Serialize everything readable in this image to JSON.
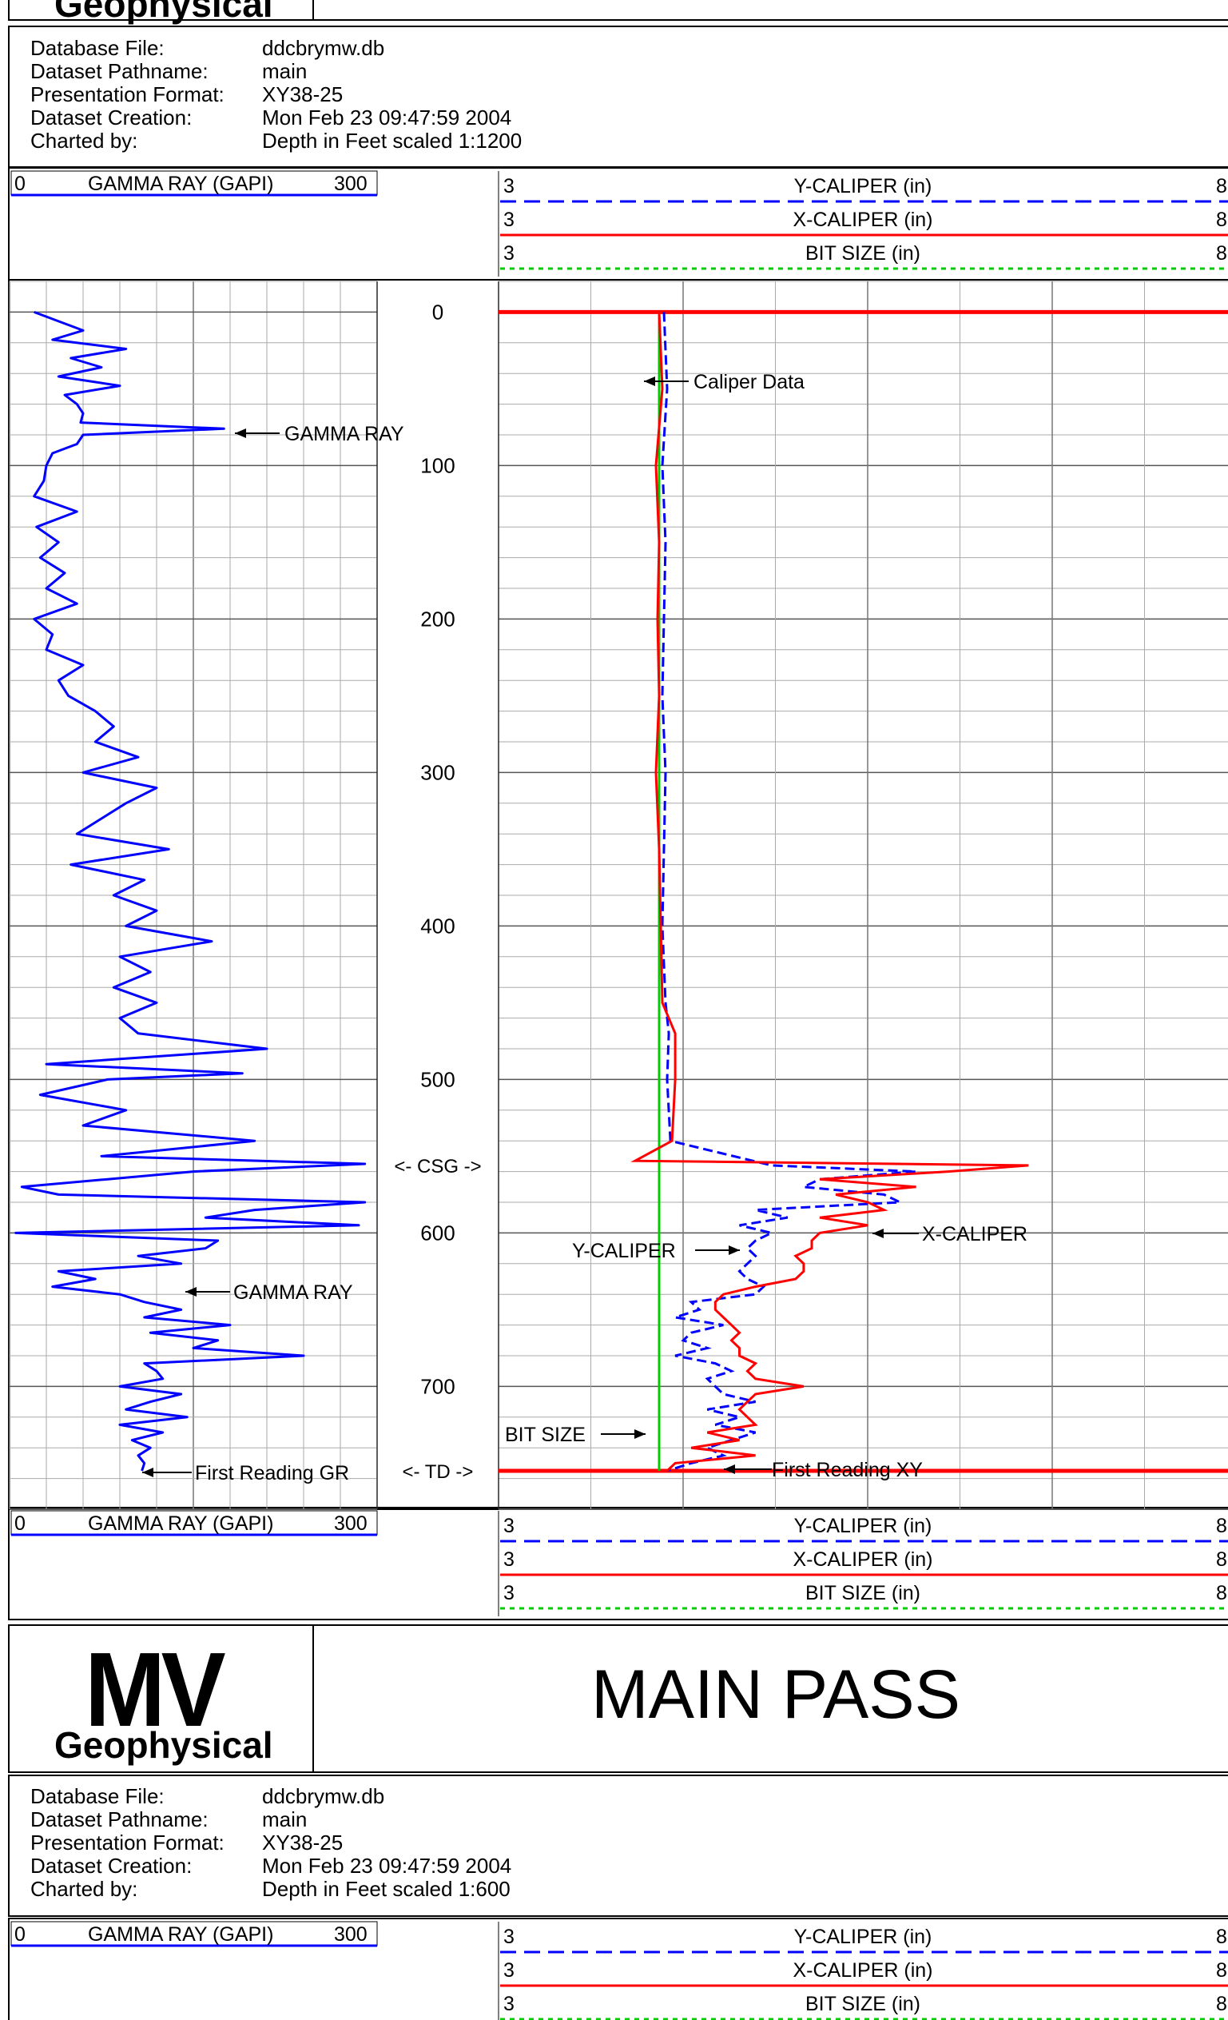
{
  "logo": {
    "brand": "MV",
    "name": "Geophysical"
  },
  "top_logo_partial": "Geophysical",
  "title": "MAIN PASS",
  "info_labels": [
    "Database File:",
    "Dataset Pathname:",
    "Presentation Format:",
    "Dataset Creation:",
    "Charted by:"
  ],
  "info_top": {
    "values": [
      "ddcbrymw.db",
      "main",
      "XY38-25",
      "Mon Feb 23 09:47:59 2004",
      "Depth in Feet scaled 1:1200"
    ]
  },
  "info_bottom": {
    "values": [
      "ddcbrymw.db",
      "main",
      "XY38-25",
      "Mon Feb 23 09:47:59 2004",
      "Depth in Feet scaled 1:600"
    ]
  },
  "track_header": {
    "gamma": {
      "min": "0",
      "label": "GAMMA RAY (GAPI)",
      "max": "300",
      "color": "#0000ff"
    },
    "curves": [
      {
        "min": "3",
        "label": "Y-CALIPER (in)",
        "max": "8",
        "color": "#0000ff",
        "style": "dashed"
      },
      {
        "min": "3",
        "label": "X-CALIPER (in)",
        "max": "8",
        "color": "#ff0000",
        "style": "solid"
      },
      {
        "min": "3",
        "label": "BIT SIZE (in)",
        "max": "8",
        "color": "#00cc00",
        "style": "dotted"
      }
    ]
  },
  "chart_data": {
    "type": "line",
    "depth_axis": {
      "label": "Depth in Feet",
      "range": [
        -20,
        780
      ],
      "ticks": [
        0,
        100,
        200,
        300,
        400,
        500,
        600,
        700
      ],
      "direction": "down"
    },
    "markers": [
      {
        "text": "<- CSG ->",
        "depth": 556
      },
      {
        "text": "<- TD ->",
        "depth": 755
      }
    ],
    "tracks": [
      {
        "name": "GAMMA RAY",
        "xlim": [
          0,
          300
        ],
        "series": [
          {
            "name": "GAMMA RAY (GAPI)",
            "color": "#0000ff",
            "depth": [
              0,
              6,
              12,
              18,
              24,
              30,
              36,
              42,
              48,
              54,
              60,
              66,
              72,
              76,
              80,
              86,
              92,
              100,
              110,
              120,
              130,
              140,
              150,
              160,
              170,
              180,
              190,
              200,
              210,
              220,
              230,
              240,
              250,
              260,
              270,
              280,
              290,
              300,
              310,
              320,
              330,
              340,
              350,
              360,
              370,
              380,
              390,
              400,
              410,
              420,
              430,
              440,
              450,
              460,
              470,
              480,
              490,
              496,
              500,
              510,
              520,
              530,
              540,
              550,
              555,
              560,
              565,
              570,
              575,
              580,
              585,
              590,
              595,
              600,
              605,
              610,
              615,
              620,
              625,
              630,
              635,
              640,
              645,
              650,
              655,
              660,
              665,
              670,
              675,
              680,
              685,
              690,
              695,
              700,
              705,
              710,
              715,
              720,
              725,
              730,
              735,
              740,
              745,
              750,
              755
            ],
            "values": [
              20,
              40,
              60,
              35,
              95,
              50,
              75,
              40,
              90,
              45,
              55,
              60,
              58,
              175,
              60,
              55,
              35,
              30,
              28,
              20,
              55,
              22,
              40,
              25,
              45,
              30,
              55,
              20,
              35,
              30,
              60,
              40,
              48,
              70,
              85,
              70,
              105,
              60,
              120,
              95,
              75,
              55,
              130,
              50,
              110,
              85,
              120,
              95,
              165,
              90,
              115,
              85,
              120,
              90,
              105,
              210,
              30,
              190,
              80,
              25,
              95,
              60,
              200,
              75,
              290,
              150,
              80,
              10,
              40,
              290,
              200,
              160,
              285,
              5,
              170,
              160,
              105,
              140,
              40,
              70,
              35,
              90,
              110,
              140,
              110,
              180,
              115,
              170,
              150,
              240,
              110,
              120,
              125,
              90,
              140,
              115,
              95,
              145,
              90,
              125,
              100,
              115,
              105,
              110,
              108
            ]
          }
        ]
      },
      {
        "name": "CALIPER",
        "xlim": [
          3,
          8
        ],
        "series": [
          {
            "name": "Y-CALIPER (in)",
            "color": "#0000ff",
            "depth": [
              0,
              50,
              100,
              150,
              200,
              250,
              300,
              350,
              400,
              450,
              470,
              500,
              540,
              556,
              560,
              565,
              570,
              575,
              580,
              585,
              590,
              595,
              600,
              605,
              610,
              615,
              620,
              625,
              630,
              635,
              640,
              645,
              650,
              655,
              660,
              665,
              670,
              675,
              680,
              685,
              690,
              695,
              700,
              705,
              710,
              715,
              720,
              725,
              730,
              735,
              740,
              745,
              750,
              755
            ],
            "values": [
              4.03,
              4.05,
              4.02,
              4.04,
              4.03,
              4.02,
              4.04,
              4.03,
              4.02,
              4.04,
              4.06,
              4.05,
              4.07,
              4.7,
              5.6,
              5.0,
              4.9,
              5.4,
              5.5,
              4.6,
              4.8,
              4.5,
              4.7,
              4.6,
              4.55,
              4.6,
              4.55,
              4.5,
              4.55,
              4.65,
              4.6,
              4.2,
              4.25,
              4.1,
              4.4,
              4.2,
              4.15,
              4.3,
              4.1,
              4.35,
              4.45,
              4.3,
              4.35,
              4.4,
              4.6,
              4.3,
              4.5,
              4.35,
              4.6,
              4.45,
              4.3,
              4.4,
              4.2,
              4.05
            ]
          },
          {
            "name": "X-CALIPER (in)",
            "color": "#ff0000",
            "depth": [
              0,
              50,
              100,
              150,
              200,
              250,
              300,
              350,
              400,
              450,
              470,
              500,
              540,
              553,
              556,
              560,
              565,
              570,
              575,
              580,
              585,
              590,
              595,
              600,
              605,
              610,
              615,
              620,
              625,
              630,
              635,
              640,
              645,
              650,
              655,
              660,
              665,
              670,
              675,
              680,
              685,
              690,
              695,
              700,
              705,
              710,
              715,
              720,
              725,
              730,
              735,
              740,
              745,
              750,
              755
            ],
            "values": [
              4.0,
              4.02,
              3.98,
              4.0,
              3.99,
              4.0,
              3.98,
              4.0,
              4.01,
              4.02,
              4.1,
              4.1,
              4.08,
              3.85,
              6.3,
              5.8,
              5.0,
              5.6,
              5.1,
              5.3,
              5.4,
              5.0,
              5.3,
              5.0,
              4.95,
              4.95,
              4.85,
              4.9,
              4.9,
              4.85,
              4.6,
              4.4,
              4.35,
              4.35,
              4.4,
              4.45,
              4.5,
              4.45,
              4.5,
              4.5,
              4.6,
              4.55,
              4.6,
              4.9,
              4.6,
              4.55,
              4.5,
              4.55,
              4.6,
              4.3,
              4.5,
              4.2,
              4.6,
              4.1,
              4.05
            ]
          },
          {
            "name": "BIT SIZE (in)",
            "color": "#00cc00",
            "depth": [
              0,
              755
            ],
            "values": [
              4.0,
              4.0
            ]
          }
        ]
      }
    ]
  },
  "annotations": {
    "gamma_ray_1": "GAMMA RAY",
    "gamma_ray_2": "GAMMA RAY",
    "first_reading_gr": "First Reading GR",
    "caliper_data": "Caliper Data",
    "x_caliper": "X-CALIPER",
    "y_caliper": "Y-CALIPER",
    "bit_size": "BIT SIZE",
    "first_reading_xy": "First Reading XY"
  }
}
